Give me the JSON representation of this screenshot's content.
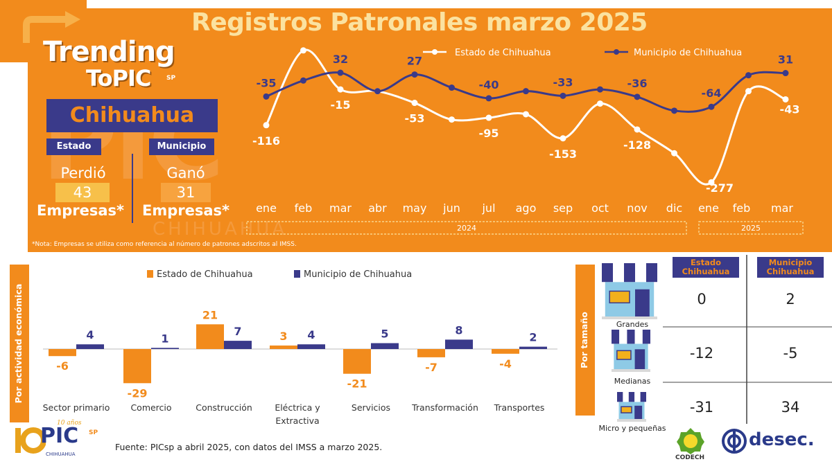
{
  "brand": {
    "line1": "Trending",
    "line2": "ToPIC",
    "sp": "SP",
    "watermark": "PIC",
    "watermark_sub": "CHIHUAHUA"
  },
  "title": "Registros Patronales marzo 2025",
  "summary": {
    "city": "Chihuahua",
    "estado": {
      "badge": "Estado",
      "word": "Perdió",
      "value": "43",
      "unit": "Empresas*"
    },
    "municipio": {
      "badge": "Municipio",
      "word": "Ganó",
      "value": "31",
      "unit": "Empresas*"
    }
  },
  "note": "*Nota: Empresas se utiliza como referencia al número de patrones adscritos al IMSS.",
  "colors": {
    "orange": "#f28b1c",
    "navy": "#3a3a8a",
    "white": "#ffffff",
    "cream": "#fbe2a0",
    "badge_orange": "#f7a33f"
  },
  "chart_data": [
    {
      "type": "line",
      "title": "Registros Patronales marzo 2025",
      "categories": [
        "ene",
        "feb",
        "mar",
        "abr",
        "may",
        "jun",
        "jul",
        "ago",
        "sep",
        "oct",
        "nov",
        "dic",
        "ene",
        "feb",
        "mar"
      ],
      "years": [
        {
          "label": "2024",
          "from": 0,
          "to": 11
        },
        {
          "label": "2025",
          "from": 12,
          "to": 14
        }
      ],
      "series": [
        {
          "name": "Estado de Chihuahua",
          "color": "#ffffff",
          "values": [
            -116,
            95,
            -15,
            -20,
            -53,
            -100,
            -95,
            -85,
            -153,
            -55,
            -128,
            -195,
            -277,
            -20,
            -43
          ],
          "labeled": [
            0,
            2,
            4,
            6,
            8,
            10,
            12,
            14
          ]
        },
        {
          "name": "Municipio de Chihuahua",
          "color": "#3a3a8a",
          "values": [
            -35,
            10,
            32,
            -20,
            27,
            -10,
            -40,
            -20,
            -33,
            -15,
            -36,
            -75,
            -64,
            25,
            31
          ],
          "labeled": [
            0,
            2,
            4,
            6,
            8,
            10,
            12,
            14
          ]
        }
      ],
      "ylim": [
        -300,
        120
      ],
      "legend": "top"
    },
    {
      "type": "bar",
      "ylabel": "Por actividad económica",
      "categories": [
        "Sector primario",
        "Comercio",
        "Construcción",
        "Eléctrica y Extractiva",
        "Servicios",
        "Transformación",
        "Transportes"
      ],
      "series": [
        {
          "name": "Estado de Chihuahua",
          "color": "#f28b1c",
          "values": [
            -6,
            -29,
            21,
            3,
            -21,
            -7,
            -4
          ]
        },
        {
          "name": "Municipio de Chihuahua",
          "color": "#3a3a8a",
          "values": [
            4,
            1,
            7,
            4,
            5,
            8,
            2
          ]
        }
      ],
      "ylim": [
        -32,
        24
      ],
      "legend": "top"
    },
    {
      "type": "table",
      "ylabel": "Por tamaño",
      "columns": [
        "Estado Chihuahua",
        "Municipio Chihuahua"
      ],
      "rows": [
        {
          "label": "Grandes",
          "values": [
            "0",
            "2"
          ]
        },
        {
          "label": "Medianas",
          "values": [
            "-12",
            "-5"
          ]
        },
        {
          "label": "Micro y pequeñas",
          "values": [
            "-31",
            "34"
          ]
        }
      ]
    }
  ],
  "source": "Fuente:  PICsp a abril 2025, con datos del IMSS a marzo 2025.",
  "logos": {
    "pic_years": "10 años",
    "pic": "PIC",
    "pic_sp": "SP",
    "pic_sub": "CHIHUAHUA",
    "codech": "CODECH",
    "desec": "desec."
  }
}
